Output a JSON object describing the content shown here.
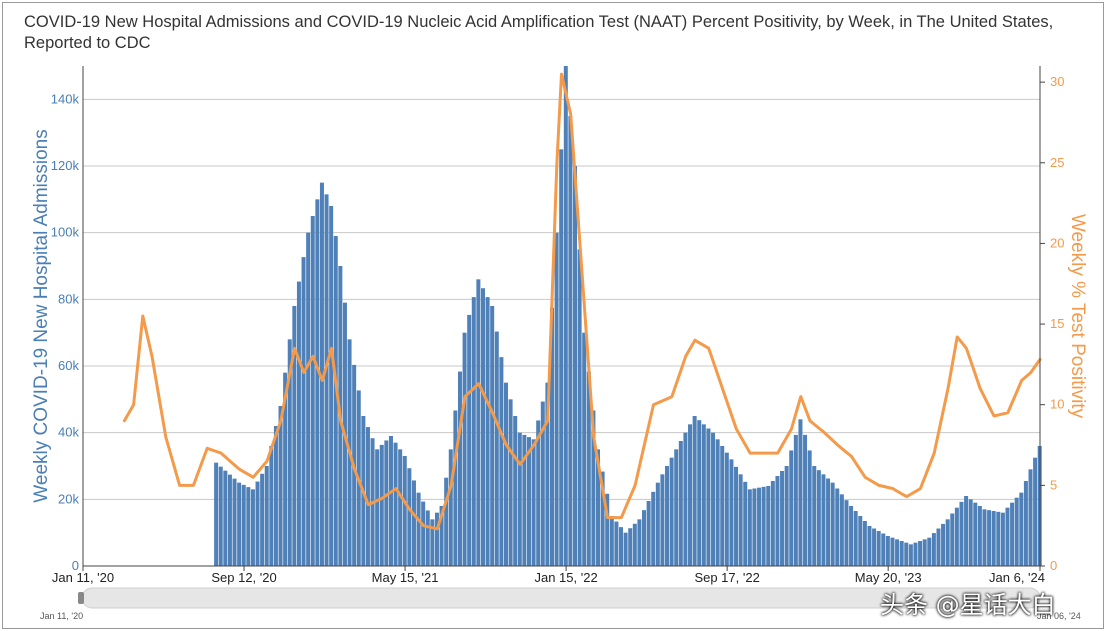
{
  "chart_data": {
    "type": "bar+line",
    "title": "COVID-19 New Hospital Admissions and COVID-19 Nucleic Acid Amplification Test (NAAT) Percent Positivity, by Week, in The United States, Reported to CDC",
    "ylabel_left": "Weekly COVID-19 New Hospital Admissions",
    "ylabel_right": "Weekly % Test Positivity",
    "ylim_left": [
      0,
      150000
    ],
    "ylim_right": [
      0,
      31
    ],
    "left_ticks": [
      "0",
      "20k",
      "40k",
      "60k",
      "80k",
      "100k",
      "120k",
      "140k"
    ],
    "right_ticks": [
      "0",
      "5",
      "10",
      "15",
      "20",
      "25",
      "30"
    ],
    "x_ticks": [
      "Jan 11, '20",
      "Sep 12, '20",
      "May 15, '21",
      "Jan 15, '22",
      "Sep 17, '22",
      "May 20, '23",
      "Jan 6, '24"
    ],
    "bar_start": "2020-08-01",
    "bar_end": "2024-01-06",
    "line_start": "2020-03-14",
    "line_end": "2024-01-06",
    "series": [
      {
        "name": "Weekly COVID-19 New Hospital Admissions",
        "type": "bar"
      },
      {
        "name": "Weekly % Test Positivity",
        "type": "line"
      }
    ],
    "grid": true
  },
  "navigator": {
    "start_label": "Jan 11, '20",
    "end_label": "Jan 06, '24"
  },
  "watermark": "头条 @星话大白",
  "colors": {
    "bar": "#4f81b8",
    "line": "#f39a4b",
    "left_axis_text": "#4a7fb5",
    "right_axis_text": "#f39a4b"
  }
}
